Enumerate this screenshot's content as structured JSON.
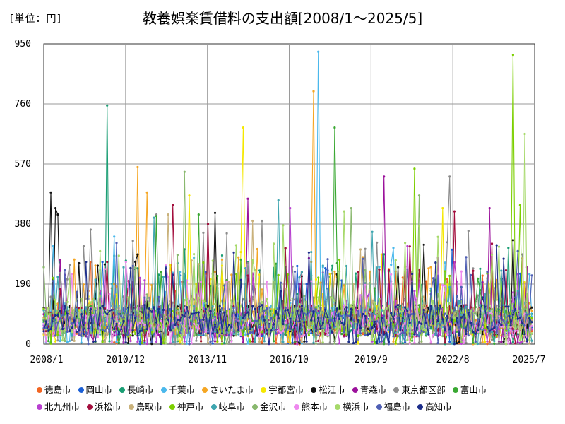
{
  "header": {
    "unit_label": "[単位：円]",
    "title": "教養娯楽賃借料の支出額[2008/1～2025/5]"
  },
  "chart_data": {
    "type": "line",
    "title": "教養娯楽賃借料の支出額[2008/1～2025/5]",
    "unit": "円",
    "ylim": [
      0,
      950
    ],
    "yticks": [
      "0",
      "190",
      "380",
      "570",
      "760",
      "950"
    ],
    "xticks": [
      "2008/1",
      "2010/12",
      "2013/11",
      "2016/10",
      "2019/9",
      "2022/8",
      "2025/7"
    ],
    "period": {
      "start": "2008/1",
      "end": "2025/5",
      "months": 209
    },
    "grid": true,
    "legend_position": "bottom",
    "series": [
      {
        "name": "徳島市",
        "color": "#f26522",
        "base": 65,
        "spikes": [
          [
            20,
            260
          ],
          [
            150,
            230
          ]
        ]
      },
      {
        "name": "岡山市",
        "color": "#1a5fd6",
        "base": 70,
        "spikes": [
          [
            25,
            260
          ],
          [
            120,
            240
          ]
        ]
      },
      {
        "name": "長崎市",
        "color": "#1a9e74",
        "base": 75,
        "spikes": [
          [
            27,
            755
          ],
          [
            60,
            300
          ]
        ]
      },
      {
        "name": "千葉市",
        "color": "#4ab8ec",
        "base": 80,
        "spikes": [
          [
            117,
            925
          ],
          [
            30,
            340
          ]
        ]
      },
      {
        "name": "さいたま市",
        "color": "#f5a623",
        "base": 80,
        "spikes": [
          [
            40,
            560
          ],
          [
            115,
            800
          ],
          [
            44,
            480
          ]
        ]
      },
      {
        "name": "宇都宮市",
        "color": "#f5e800",
        "base": 75,
        "spikes": [
          [
            85,
            685
          ],
          [
            170,
            430
          ],
          [
            62,
            470
          ]
        ]
      },
      {
        "name": "松江市",
        "color": "#111111",
        "base": 75,
        "spikes": [
          [
            3,
            480
          ],
          [
            5,
            430
          ],
          [
            73,
            415
          ],
          [
            6,
            410
          ]
        ]
      },
      {
        "name": "青森市",
        "color": "#9b119b",
        "base": 70,
        "spikes": [
          [
            145,
            530
          ],
          [
            190,
            430
          ],
          [
            87,
            460
          ]
        ]
      },
      {
        "name": "東京都区部",
        "color": "#8c8c8c",
        "base": 95,
        "spikes": [
          [
            48,
            410
          ],
          [
            93,
            390
          ],
          [
            173,
            530
          ]
        ]
      },
      {
        "name": "富山市",
        "color": "#3aa832",
        "base": 75,
        "spikes": [
          [
            124,
            685
          ],
          [
            48,
            405
          ],
          [
            66,
            410
          ]
        ]
      },
      {
        "name": "北九州市",
        "color": "#b83fd0",
        "base": 70,
        "spikes": [
          [
            105,
            430
          ],
          [
            155,
            310
          ]
        ]
      },
      {
        "name": "浜松市",
        "color": "#a30e3d",
        "base": 75,
        "spikes": [
          [
            55,
            440
          ],
          [
            70,
            380
          ],
          [
            175,
            420
          ]
        ]
      },
      {
        "name": "鳥取市",
        "color": "#c9b17a",
        "base": 70,
        "spikes": [
          [
            53,
            410
          ],
          [
            89,
            390
          ]
        ]
      },
      {
        "name": "神戸市",
        "color": "#7ccf00",
        "base": 70,
        "spikes": [
          [
            158,
            555
          ],
          [
            200,
            915
          ],
          [
            203,
            440
          ]
        ]
      },
      {
        "name": "岐阜市",
        "color": "#3fa6b0",
        "base": 75,
        "spikes": [
          [
            47,
            400
          ],
          [
            140,
            355
          ],
          [
            100,
            455
          ]
        ]
      },
      {
        "name": "金沢市",
        "color": "#89b86e",
        "base": 70,
        "spikes": [
          [
            60,
            545
          ],
          [
            131,
            430
          ],
          [
            160,
            470
          ]
        ]
      },
      {
        "name": "熊本市",
        "color": "#ee88ee",
        "base": 60,
        "spikes": [
          [
            178,
            230
          ],
          [
            35,
            260
          ]
        ]
      },
      {
        "name": "横浜市",
        "color": "#a6d96a",
        "base": 90,
        "spikes": [
          [
            205,
            665
          ],
          [
            128,
            420
          ]
        ]
      },
      {
        "name": "福島市",
        "color": "#4f5fb4",
        "base": 70,
        "spikes": [
          [
            31,
            320
          ],
          [
            136,
            270
          ]
        ]
      },
      {
        "name": "高知市",
        "color": "#1b2d8a",
        "base": 75,
        "spikes": [
          [
            18,
            260
          ],
          [
            113,
            290
          ]
        ]
      }
    ]
  }
}
